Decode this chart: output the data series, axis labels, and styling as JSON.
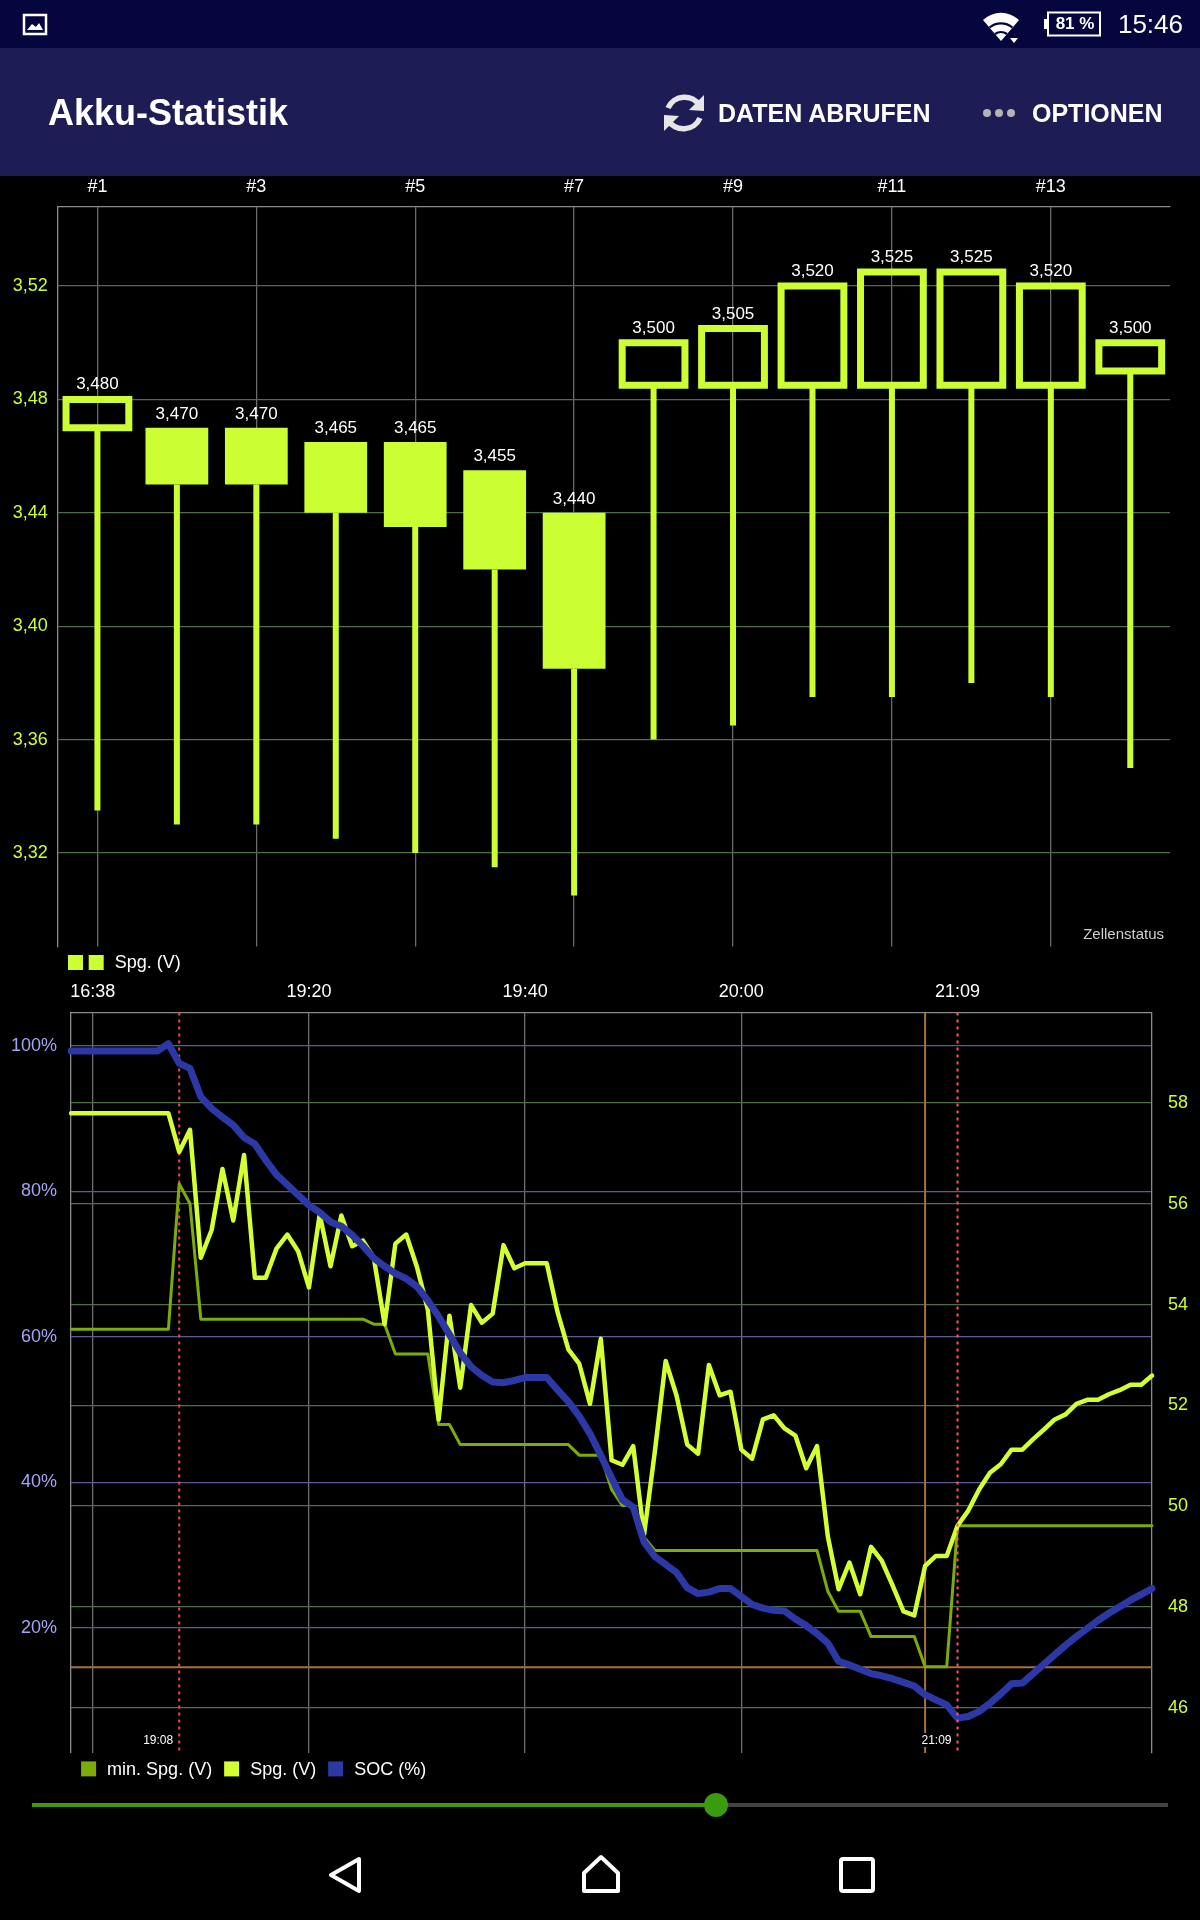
{
  "chart_data": [
    {
      "type": "other",
      "title": "Akku-Statistik",
      "annotations": [
        "81 %",
        "15:46",
        "DATEN ABRUFEN",
        "OPTIONEN"
      ]
    },
    {
      "type": "candlestick",
      "categories": [
        "#1",
        null,
        "#3",
        null,
        "#5",
        null,
        "#7",
        null,
        "#9",
        null,
        "#11",
        null,
        "#13",
        null
      ],
      "series": [
        {
          "name": "Spg. (V)",
          "color": "#ccff33",
          "ohlc": [
            [
              3.47,
              3.48,
              3.335,
              3.48
            ],
            [
              3.47,
              3.47,
              3.33,
              3.45
            ],
            [
              3.47,
              3.47,
              3.33,
              3.45
            ],
            [
              3.465,
              3.465,
              3.325,
              3.44
            ],
            [
              3.465,
              3.465,
              3.32,
              3.435
            ],
            [
              3.455,
              3.455,
              3.315,
              3.42
            ],
            [
              3.44,
              3.44,
              3.305,
              3.385
            ],
            [
              3.485,
              3.5,
              3.36,
              3.5
            ],
            [
              3.485,
              3.505,
              3.365,
              3.505
            ],
            [
              3.485,
              3.52,
              3.375,
              3.52
            ],
            [
              3.485,
              3.525,
              3.375,
              3.525
            ],
            [
              3.485,
              3.525,
              3.38,
              3.525
            ],
            [
              3.485,
              3.52,
              3.375,
              3.52
            ],
            [
              3.49,
              3.5,
              3.35,
              3.5
            ]
          ],
          "value_labels": [
            "3,480",
            "3,470",
            "3,470",
            "3,465",
            "3,465",
            "3,455",
            "3,440",
            "3,500",
            "3,505",
            "3,520",
            "3,525",
            "3,525",
            "3,520",
            "3,500"
          ]
        }
      ],
      "ylim": [
        3.287,
        3.548
      ],
      "yticks": [
        {
          "value": 3.32,
          "label": "3,32"
        },
        {
          "value": 3.36,
          "label": "3,36"
        },
        {
          "value": 3.4,
          "label": "3,40"
        },
        {
          "value": 3.44,
          "label": "3,44"
        },
        {
          "value": 3.48,
          "label": "3,48"
        },
        {
          "value": 3.52,
          "label": "3,52"
        }
      ],
      "grid": true,
      "legend": "bottom left",
      "annotations": [
        "Zellenstatus"
      ]
    },
    {
      "type": "line",
      "categories": [
        null,
        null,
        "16:38",
        null,
        null,
        null,
        null,
        null,
        null,
        null,
        null,
        null,
        null,
        null,
        null,
        null,
        null,
        null,
        null,
        null,
        null,
        null,
        "19:20",
        null,
        null,
        null,
        null,
        null,
        null,
        null,
        null,
        null,
        null,
        null,
        null,
        null,
        null,
        null,
        null,
        null,
        null,
        null,
        "19:40",
        null,
        null,
        null,
        null,
        null,
        null,
        null,
        null,
        null,
        null,
        null,
        null,
        null,
        null,
        null,
        null,
        null,
        null,
        null,
        "20:00",
        null,
        null,
        null,
        null,
        null,
        null,
        null,
        null,
        null,
        null,
        null,
        null,
        null,
        null,
        null,
        null,
        null,
        null,
        null,
        "21:09",
        null,
        null,
        null,
        null,
        null,
        null,
        null,
        null,
        null,
        null,
        null,
        null,
        null,
        null,
        null,
        null,
        null,
        null
      ],
      "ylim": [
        2.8,
        104.6
      ],
      "yticks": [
        {
          "value": 20,
          "label": "20%"
        },
        {
          "value": 40,
          "label": "40%"
        },
        {
          "value": 60,
          "label": "60%"
        },
        {
          "value": 80,
          "label": "80%"
        },
        {
          "value": 100,
          "label": "100%"
        }
      ],
      "y2lim": [
        45.1,
        59.8
      ],
      "y2ticks": [
        46,
        48,
        50,
        52,
        54,
        56,
        58
      ],
      "grid": true,
      "legend": "bottom left",
      "ref_lines": [
        {
          "axis": "x",
          "value": "21:09",
          "label": "21:09",
          "color": "#ff5555",
          "line_style": "dotted"
        },
        {
          "axis": "y2",
          "value": 46.8,
          "color": "#a8703a"
        }
      ],
      "annotations": [
        "19:08"
      ],
      "series": [
        {
          "name": "min. Spg. (V)",
          "color": "#7cac0a",
          "axis": "y2",
          "values": [
            53.51,
            53.51,
            53.51,
            53.51,
            53.51,
            53.51,
            53.51,
            53.51,
            53.51,
            53.51,
            56.4,
            56.0,
            53.71,
            53.71,
            53.71,
            53.71,
            53.71,
            53.71,
            53.71,
            53.71,
            53.71,
            53.71,
            53.71,
            53.71,
            53.71,
            53.71,
            53.71,
            53.71,
            53.61,
            53.61,
            53.02,
            53.02,
            53.02,
            53.02,
            51.62,
            51.62,
            51.22,
            51.22,
            51.22,
            51.22,
            51.22,
            51.22,
            51.22,
            51.22,
            51.22,
            51.22,
            51.22,
            51.01,
            51.01,
            51.01,
            50.33,
            50.01,
            50.01,
            49.38,
            49.12,
            49.12,
            49.12,
            49.12,
            49.12,
            49.12,
            49.12,
            49.12,
            49.12,
            49.12,
            49.12,
            49.12,
            49.12,
            49.12,
            49.12,
            49.12,
            48.31,
            47.91,
            47.91,
            47.91,
            47.41,
            47.41,
            47.41,
            47.41,
            47.41,
            46.81,
            46.81,
            46.81,
            49.61,
            49.61,
            49.61,
            49.61,
            49.61,
            49.61,
            49.61,
            49.61,
            49.61,
            49.61,
            49.61,
            49.61,
            49.61,
            49.61,
            49.61,
            49.61,
            49.61,
            49.61,
            49.61
          ]
        },
        {
          "name": "Spg. (V)",
          "color": "#d4ff33",
          "axis": "y2",
          "values": [
            57.8,
            57.8,
            57.8,
            57.8,
            57.8,
            57.8,
            57.8,
            57.8,
            57.8,
            57.8,
            57.03,
            57.47,
            54.93,
            55.48,
            56.69,
            55.67,
            56.97,
            54.53,
            54.53,
            55.11,
            55.39,
            55.06,
            54.34,
            55.79,
            54.76,
            55.77,
            55.16,
            55.27,
            54.93,
            53.61,
            55.21,
            55.39,
            54.74,
            53.9,
            51.72,
            53.78,
            52.35,
            53.99,
            53.64,
            53.82,
            55.18,
            54.72,
            54.82,
            54.82,
            54.82,
            53.85,
            53.11,
            52.83,
            52.03,
            53.32,
            50.91,
            50.82,
            51.19,
            49.43,
            51.08,
            52.88,
            52.2,
            51.22,
            51.04,
            52.8,
            52.2,
            52.27,
            51.12,
            50.94,
            51.72,
            51.8,
            51.54,
            51.4,
            50.75,
            51.19,
            49.4,
            48.35,
            48.88,
            48.25,
            49.19,
            48.91,
            48.42,
            47.91,
            47.83,
            48.81,
            49.01,
            49.01,
            49.61,
            49.91,
            50.33,
            50.66,
            50.83,
            51.12,
            51.12,
            51.33,
            51.52,
            51.72,
            51.82,
            52.03,
            52.11,
            52.11,
            52.22,
            52.3,
            52.41,
            52.41,
            52.59
          ]
        },
        {
          "name": "SOC (%)",
          "color": "#2c38a6",
          "axis": "y",
          "values": [
            99.3,
            99.3,
            99.3,
            99.3,
            99.3,
            99.3,
            99.3,
            99.3,
            99.3,
            100.3,
            97.6,
            96.9,
            93.0,
            91.4,
            90.2,
            89.1,
            87.4,
            86.5,
            84.3,
            82.3,
            80.9,
            79.5,
            78.1,
            77.1,
            75.8,
            75.2,
            74.0,
            72.5,
            70.8,
            69.7,
            68.7,
            68.0,
            66.9,
            65.0,
            62.8,
            60.3,
            57.8,
            55.9,
            54.7,
            53.8,
            53.7,
            54.0,
            54.4,
            54.4,
            54.4,
            52.7,
            51.1,
            49.1,
            46.7,
            43.7,
            40.6,
            37.6,
            36.6,
            31.8,
            29.8,
            28.7,
            27.6,
            25.5,
            24.7,
            24.9,
            25.4,
            25.4,
            24.3,
            23.2,
            22.7,
            22.4,
            22.3,
            21.2,
            20.3,
            19.2,
            17.9,
            15.4,
            14.9,
            14.3,
            13.7,
            13.4,
            13.0,
            12.5,
            12.0,
            10.8,
            10.1,
            9.4,
            7.6,
            7.8,
            8.5,
            9.6,
            10.9,
            12.3,
            12.4,
            13.7,
            15.0,
            16.3,
            17.6,
            18.8,
            19.9,
            21.0,
            22.0,
            22.9,
            23.8,
            24.6,
            25.4
          ]
        }
      ]
    }
  ]
}
